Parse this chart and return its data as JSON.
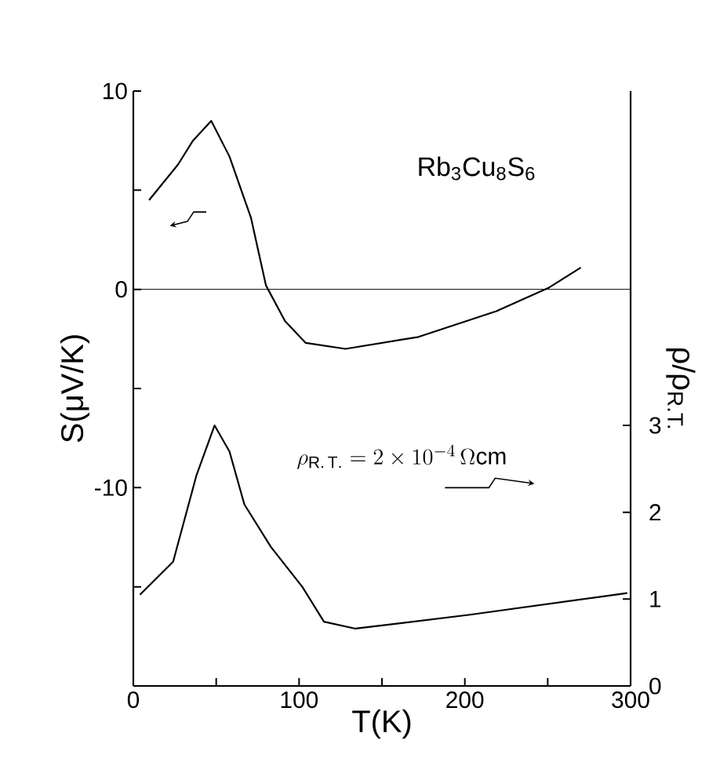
{
  "chart_data": {
    "type": "line",
    "xlabel": "T(K)",
    "ylabel": "S(μV/K)",
    "y2label": "ρ/ρ$_{R.T.}$",
    "annotations": [
      "Rb$_{3}$Cu$_{8}$S$_{6}$",
      "\\rho_{\\mathrm{R.\\,T.}} = 2 \\times 10^{-4}\\,\\Omega\\mathrm{cm}"
    ],
    "xlim": [
      0,
      300
    ],
    "xticks": [
      0,
      {
        "value": 50,
        "label": null
      },
      100,
      {
        "value": 150,
        "label": null
      },
      200,
      {
        "value": 250,
        "label": null
      },
      300
    ],
    "ylim": [
      -20,
      10
    ],
    "yticks": [
      {
        "value": -15,
        "label": null
      },
      -10,
      {
        "value": -5,
        "label": null
      },
      0,
      {
        "value": 5,
        "label": null
      },
      10
    ],
    "y2lim": [
      0,
      6.85
    ],
    "y2ticks": [
      0,
      1,
      2,
      3
    ],
    "ref_lines": [
      {
        "axis": "y",
        "value": 0,
        "color": "#000000"
      }
    ],
    "series": [
      {
        "color": "#000000",
        "x": [
          9.5,
          27,
          36,
          47,
          58,
          71,
          80,
          91.5,
          104,
          128,
          172,
          219,
          251,
          270
        ],
        "values": [
          4.5,
          6.3,
          7.5,
          8.5,
          6.7,
          3.6,
          0.2,
          -1.6,
          -2.7,
          -3.0,
          -2.4,
          -1.1,
          0.1,
          1.1
        ]
      },
      {
        "color": "#000000",
        "axis": "y2",
        "x": [
          4,
          24,
          38,
          49,
          58,
          67,
          83,
          102,
          115,
          134,
          203,
          298
        ],
        "values": [
          1.05,
          1.43,
          2.42,
          3.0,
          2.7,
          2.09,
          1.6,
          1.14,
          0.74,
          0.66,
          0.82,
          1.07
        ]
      }
    ]
  }
}
